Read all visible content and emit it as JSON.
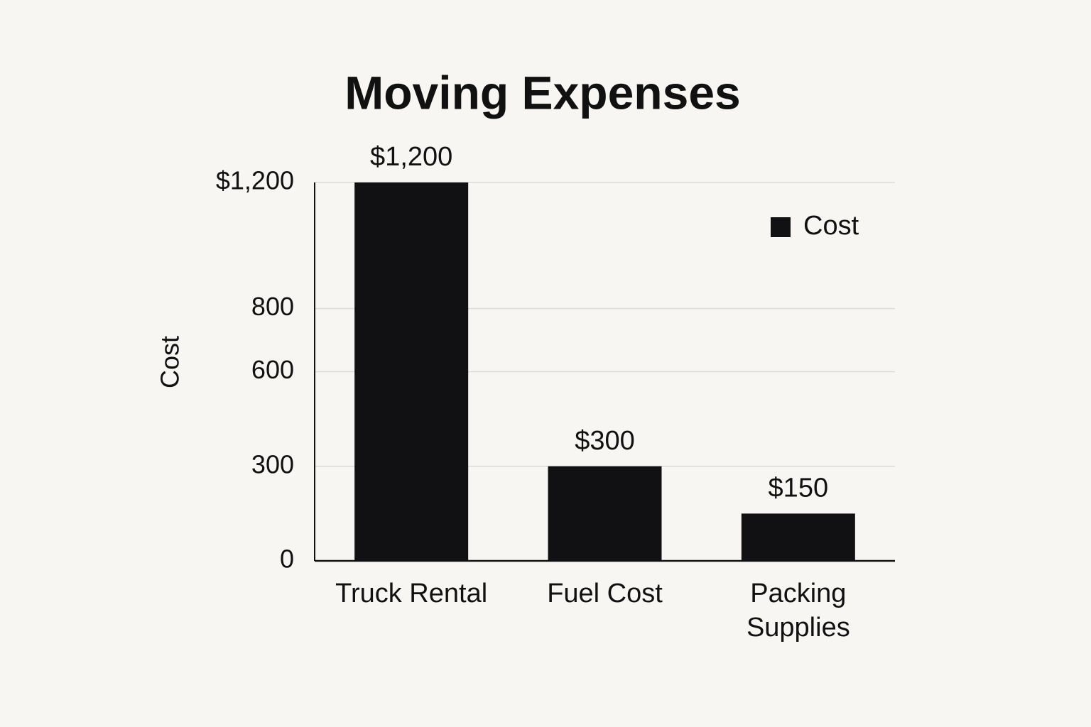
{
  "chart_data": {
    "type": "bar",
    "title": "Moving Expenses",
    "y_label": "Cost",
    "categories": [
      "Truck Rental",
      "Fuel Cost",
      "Packing Supplies"
    ],
    "series": [
      {
        "name": "Cost",
        "color": "#111114",
        "values": [
          1200,
          300,
          150
        ],
        "value_labels": [
          "$1,200",
          "$300",
          "$150"
        ]
      }
    ],
    "ylim": [
      0,
      1200
    ],
    "yticks": [
      0,
      300,
      600,
      800,
      {
        "value": 1200,
        "label": "$1,200"
      }
    ],
    "grid": true,
    "legend": "top-right"
  }
}
